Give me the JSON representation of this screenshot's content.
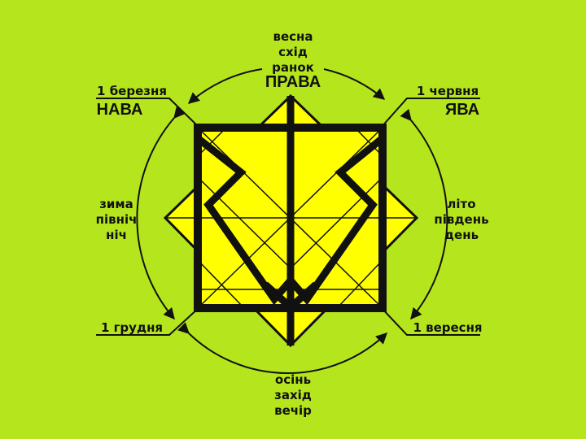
{
  "colors": {
    "background": "#b5e61d",
    "fill": "#ffff00",
    "stroke": "#111111"
  },
  "labels": {
    "top_block": "весна\nсхід\nранок",
    "top_title": "ПРАВА",
    "left_title": "НАВА",
    "right_title": "ЯВА",
    "top_left_date": "1 березня",
    "top_right_date": "1 червня",
    "bottom_left_date": "1 грудня",
    "bottom_right_date": "1 вересня",
    "left_block": "зима\nпівніч\nніч",
    "right_block": "літо\nпівдень\nдень",
    "bottom_block": "осінь\nзахід\nвечір"
  }
}
